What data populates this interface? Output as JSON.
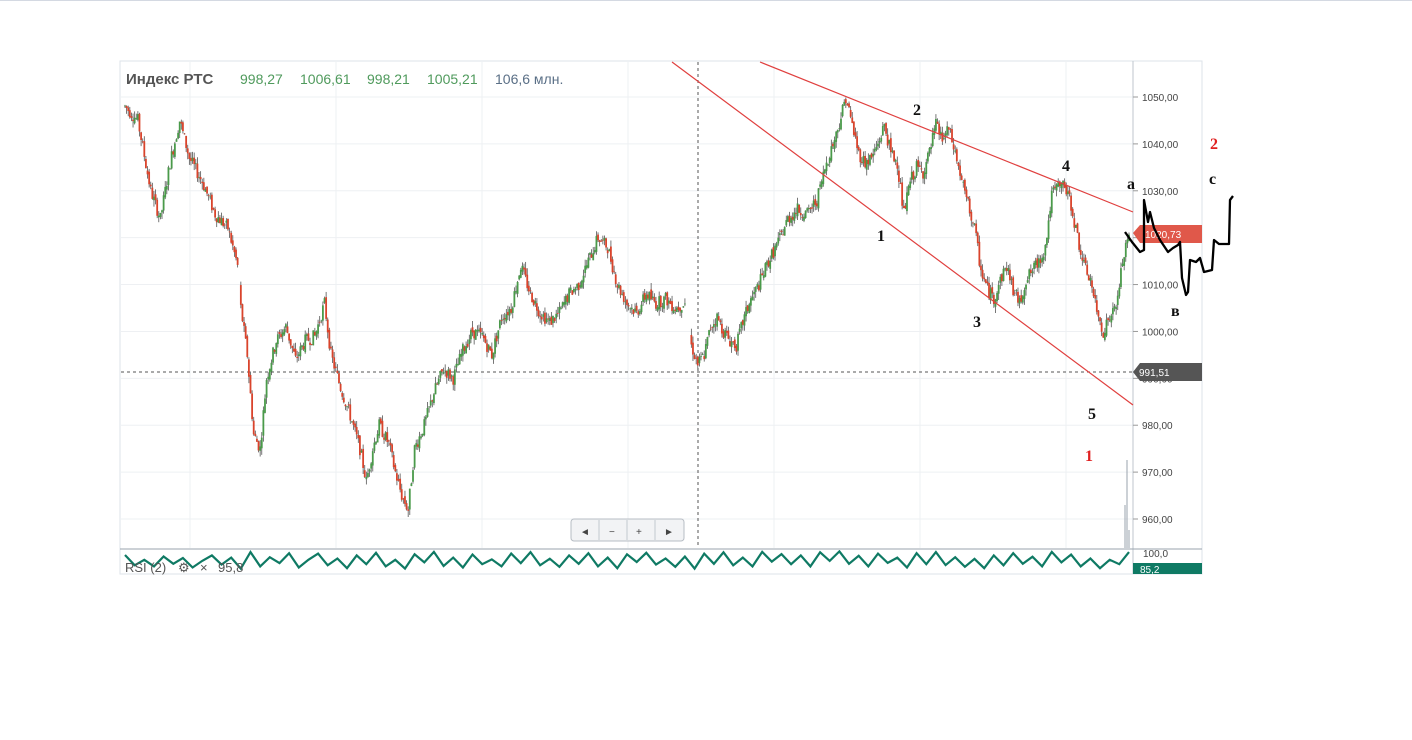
{
  "header": {
    "name": "Индекс РТС",
    "open": "998,27",
    "high": "1006,61",
    "low": "998,21",
    "close": "1005,21",
    "volume": "106,6 млн."
  },
  "navigator": {
    "left": "◄",
    "minus": "−",
    "plus": "+",
    "right": "►"
  },
  "rsi": {
    "label": "RSI (2)",
    "gear": "⚙",
    "close": "×",
    "value": "95,8",
    "badge": "85,2",
    "axis_label": "100,0"
  },
  "badges": {
    "last_price": "1020,73",
    "crosshair_price": "991,51"
  },
  "colors": {
    "up": "#4a9a4a",
    "down": "#d9442c",
    "trend": "#e0403f",
    "rsi": "#0f7a64",
    "badge_last": "#e0584a",
    "badge_cross": "#555555"
  },
  "wave_labels": {
    "w1": "1",
    "w2": "2",
    "w3": "3",
    "w4": "4",
    "w5": "5",
    "big1": "1",
    "big2": "2",
    "a": "a",
    "b": "в",
    "c": "c"
  },
  "chart_data": {
    "type": "candlestick",
    "series_name": "Индекс РТС",
    "y_ticks": [
      "1050,00",
      "1040,00",
      "1030,00",
      "1020,00",
      "1010,00",
      "1000,00",
      "990,00",
      "980,00",
      "970,00",
      "960,00"
    ],
    "ylim": [
      955,
      1058
    ],
    "grid": "vertical and horizontal",
    "anchor_path": [
      [
        0,
        1048
      ],
      [
        8,
        1045
      ],
      [
        16,
        1030
      ],
      [
        22,
        1024
      ],
      [
        28,
        1036
      ],
      [
        34,
        1045
      ],
      [
        40,
        1037
      ],
      [
        48,
        1032
      ],
      [
        56,
        1025
      ],
      [
        64,
        1022
      ],
      [
        70,
        1014
      ],
      [
        72,
        1005
      ],
      [
        76,
        995
      ],
      [
        80,
        978
      ],
      [
        84,
        975
      ],
      [
        88,
        990
      ],
      [
        94,
        998
      ],
      [
        100,
        1001
      ],
      [
        106,
        994
      ],
      [
        112,
        998
      ],
      [
        118,
        999
      ],
      [
        124,
        1006
      ],
      [
        128,
        995
      ],
      [
        134,
        988
      ],
      [
        140,
        982
      ],
      [
        146,
        975
      ],
      [
        150,
        968
      ],
      [
        154,
        975
      ],
      [
        158,
        980
      ],
      [
        164,
        976
      ],
      [
        168,
        970
      ],
      [
        172,
        965
      ],
      [
        176,
        962
      ],
      [
        180,
        975
      ],
      [
        186,
        980
      ],
      [
        192,
        987
      ],
      [
        198,
        992
      ],
      [
        204,
        990
      ],
      [
        210,
        996
      ],
      [
        216,
        1000
      ],
      [
        222,
        999
      ],
      [
        228,
        995
      ],
      [
        234,
        1003
      ],
      [
        240,
        1005
      ],
      [
        246,
        1014
      ],
      [
        252,
        1008
      ],
      [
        258,
        1004
      ],
      [
        264,
        1002
      ],
      [
        270,
        1004
      ],
      [
        276,
        1008
      ],
      [
        282,
        1010
      ],
      [
        288,
        1015
      ],
      [
        294,
        1020
      ],
      [
        300,
        1018
      ],
      [
        306,
        1010
      ],
      [
        312,
        1006
      ],
      [
        318,
        1004
      ],
      [
        324,
        1008
      ],
      [
        330,
        1006
      ],
      [
        336,
        1007
      ],
      [
        342,
        1005
      ],
      [
        348,
        1006
      ],
      [
        352,
        997
      ],
      [
        356,
        993
      ],
      [
        360,
        995
      ],
      [
        364,
        1001
      ],
      [
        368,
        1003
      ],
      [
        372,
        1000
      ],
      [
        376,
        998
      ],
      [
        380,
        997
      ],
      [
        384,
        1002
      ],
      [
        388,
        1006
      ],
      [
        394,
        1010
      ],
      [
        400,
        1015
      ],
      [
        406,
        1019
      ],
      [
        412,
        1024
      ],
      [
        418,
        1026
      ],
      [
        424,
        1025
      ],
      [
        430,
        1028
      ],
      [
        436,
        1036
      ],
      [
        442,
        1042
      ],
      [
        448,
        1050
      ],
      [
        452,
        1044
      ],
      [
        456,
        1038
      ],
      [
        460,
        1036
      ],
      [
        464,
        1037
      ],
      [
        468,
        1040
      ],
      [
        472,
        1044
      ],
      [
        476,
        1038
      ],
      [
        480,
        1036
      ],
      [
        484,
        1025
      ],
      [
        488,
        1032
      ],
      [
        492,
        1035
      ],
      [
        496,
        1034
      ],
      [
        500,
        1038
      ],
      [
        504,
        1044
      ],
      [
        508,
        1041
      ],
      [
        512,
        1043
      ],
      [
        516,
        1038
      ],
      [
        520,
        1032
      ],
      [
        524,
        1027
      ],
      [
        528,
        1022
      ],
      [
        532,
        1013
      ],
      [
        536,
        1009
      ],
      [
        540,
        1007
      ],
      [
        544,
        1011
      ],
      [
        548,
        1014
      ],
      [
        552,
        1009
      ],
      [
        556,
        1006
      ],
      [
        560,
        1011
      ],
      [
        564,
        1013
      ],
      [
        568,
        1015
      ],
      [
        572,
        1018
      ],
      [
        576,
        1029
      ],
      [
        580,
        1031
      ],
      [
        584,
        1031
      ],
      [
        588,
        1027
      ],
      [
        592,
        1020
      ],
      [
        596,
        1014
      ],
      [
        600,
        1011
      ],
      [
        604,
        1004
      ],
      [
        608,
        1000
      ],
      [
        612,
        1003
      ],
      [
        616,
        1005
      ],
      [
        620,
        1015
      ],
      [
        624,
        1020
      ]
    ],
    "rsi_path": [
      [
        0,
        82
      ],
      [
        6,
        35
      ],
      [
        12,
        60
      ],
      [
        18,
        30
      ],
      [
        24,
        75
      ],
      [
        30,
        42
      ],
      [
        36,
        68
      ],
      [
        42,
        25
      ],
      [
        48,
        55
      ],
      [
        54,
        80
      ],
      [
        60,
        38
      ],
      [
        66,
        70
      ],
      [
        72,
        20
      ],
      [
        78,
        95
      ],
      [
        84,
        30
      ],
      [
        90,
        72
      ],
      [
        96,
        45
      ],
      [
        102,
        90
      ],
      [
        108,
        25
      ],
      [
        114,
        60
      ],
      [
        120,
        88
      ],
      [
        126,
        35
      ],
      [
        132,
        66
      ],
      [
        138,
        22
      ],
      [
        144,
        80
      ],
      [
        150,
        40
      ],
      [
        156,
        92
      ],
      [
        162,
        30
      ],
      [
        168,
        60
      ],
      [
        174,
        20
      ],
      [
        180,
        85
      ],
      [
        186,
        48
      ],
      [
        192,
        96
      ],
      [
        198,
        32
      ],
      [
        204,
        70
      ],
      [
        210,
        25
      ],
      [
        216,
        84
      ],
      [
        222,
        40
      ],
      [
        228,
        62
      ],
      [
        234,
        30
      ],
      [
        240,
        88
      ],
      [
        246,
        45
      ],
      [
        252,
        95
      ],
      [
        258,
        35
      ],
      [
        264,
        65
      ],
      [
        270,
        28
      ],
      [
        276,
        80
      ],
      [
        282,
        42
      ],
      [
        288,
        90
      ],
      [
        294,
        30
      ],
      [
        300,
        70
      ],
      [
        306,
        22
      ],
      [
        312,
        85
      ],
      [
        318,
        50
      ],
      [
        324,
        92
      ],
      [
        330,
        38
      ],
      [
        336,
        66
      ],
      [
        342,
        28
      ],
      [
        348,
        75
      ],
      [
        354,
        20
      ],
      [
        360,
        88
      ],
      [
        366,
        42
      ],
      [
        372,
        94
      ],
      [
        378,
        35
      ],
      [
        384,
        70
      ],
      [
        390,
        30
      ],
      [
        396,
        96
      ],
      [
        402,
        52
      ],
      [
        408,
        86
      ],
      [
        414,
        40
      ],
      [
        420,
        80
      ],
      [
        426,
        30
      ],
      [
        432,
        94
      ],
      [
        438,
        55
      ],
      [
        444,
        98
      ],
      [
        450,
        42
      ],
      [
        456,
        78
      ],
      [
        462,
        30
      ],
      [
        468,
        88
      ],
      [
        474,
        46
      ],
      [
        480,
        70
      ],
      [
        486,
        25
      ],
      [
        492,
        90
      ],
      [
        498,
        40
      ],
      [
        504,
        95
      ],
      [
        510,
        36
      ],
      [
        516,
        72
      ],
      [
        522,
        28
      ],
      [
        528,
        64
      ],
      [
        534,
        22
      ],
      [
        540,
        80
      ],
      [
        546,
        35
      ],
      [
        552,
        90
      ],
      [
        558,
        42
      ],
      [
        564,
        74
      ],
      [
        570,
        30
      ],
      [
        576,
        96
      ],
      [
        582,
        48
      ],
      [
        588,
        84
      ],
      [
        594,
        30
      ],
      [
        600,
        66
      ],
      [
        606,
        22
      ],
      [
        612,
        60
      ],
      [
        618,
        40
      ],
      [
        624,
        95
      ]
    ]
  }
}
